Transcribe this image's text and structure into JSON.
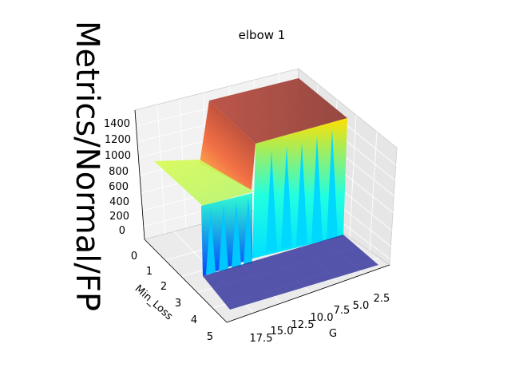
{
  "chart_data": {
    "type": "surface3d",
    "title": "elbow 1",
    "xlabel": "G",
    "ylabel": "Min_Loss",
    "zlabel": "Metrics/Normal/FP",
    "x_ticks": [
      "2.5",
      "5.0",
      "7.5",
      "10.0",
      "12.5",
      "15.0",
      "17.5"
    ],
    "y_ticks": [
      "0",
      "1",
      "2",
      "3",
      "4",
      "5"
    ],
    "z_ticks": [
      "0",
      "200",
      "400",
      "600",
      "800",
      "1000",
      "1200",
      "1400"
    ],
    "xlim": [
      1,
      19
    ],
    "ylim": [
      0,
      5
    ],
    "zlim": [
      0,
      1500
    ],
    "colormap": "jet",
    "surface_regions": [
      {
        "region": "Min_Loss < 1, G > 10",
        "approx_z": 1500
      },
      {
        "region": "Min_Loss < 1, G <= 10",
        "approx_z": 1150
      },
      {
        "region": "Min_Loss 1-2, G > 10",
        "approx_z": 750
      },
      {
        "region": "Min_Loss 1-2, G <= 10",
        "approx_z": 150,
        "note": "oscillating 0-300"
      },
      {
        "region": "Min_Loss >= 2",
        "approx_z": 0
      }
    ],
    "grid": true
  }
}
